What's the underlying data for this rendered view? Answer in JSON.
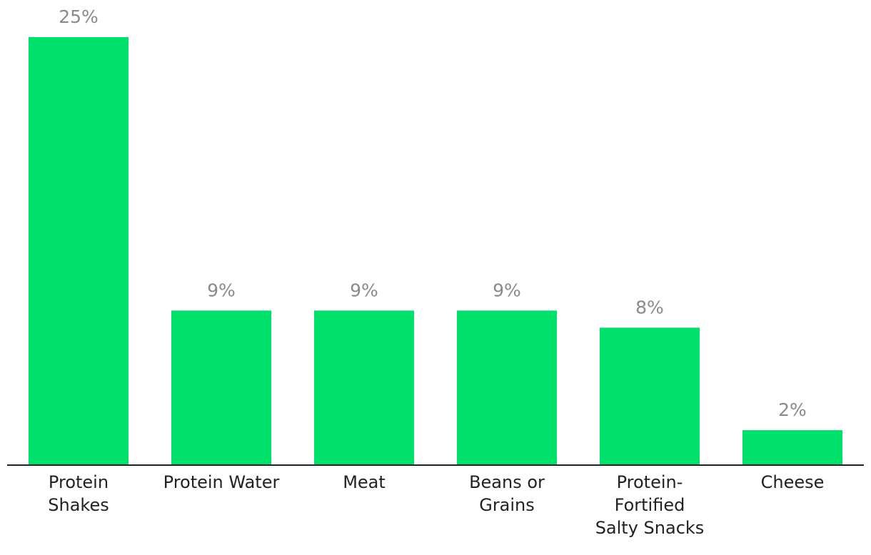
{
  "chart_data": {
    "type": "bar",
    "title": "",
    "xlabel": "",
    "ylabel": "",
    "categories": [
      "Protein Shakes",
      "Protein Water",
      "Meat",
      "Beans or Grains",
      "Protein-Fortified Salty Snacks",
      "Cheese"
    ],
    "category_label_lines": [
      [
        "Protein",
        "Shakes"
      ],
      [
        "Protein Water"
      ],
      [
        "Meat"
      ],
      [
        "Beans or",
        "Grains"
      ],
      [
        "Protein-",
        "Fortified",
        "Salty Snacks"
      ],
      [
        "Cheese"
      ]
    ],
    "values": [
      25,
      9,
      9,
      9,
      8,
      2
    ],
    "data_labels": [
      "25%",
      "9%",
      "9%",
      "9%",
      "8%",
      "2%"
    ],
    "ylim": [
      0,
      25
    ],
    "grid": false,
    "legend": "none",
    "colors": {
      "bar": "#00e16b",
      "axis": "#222222",
      "data_label": "#8a8a8a",
      "tick_label": "#222222"
    }
  }
}
